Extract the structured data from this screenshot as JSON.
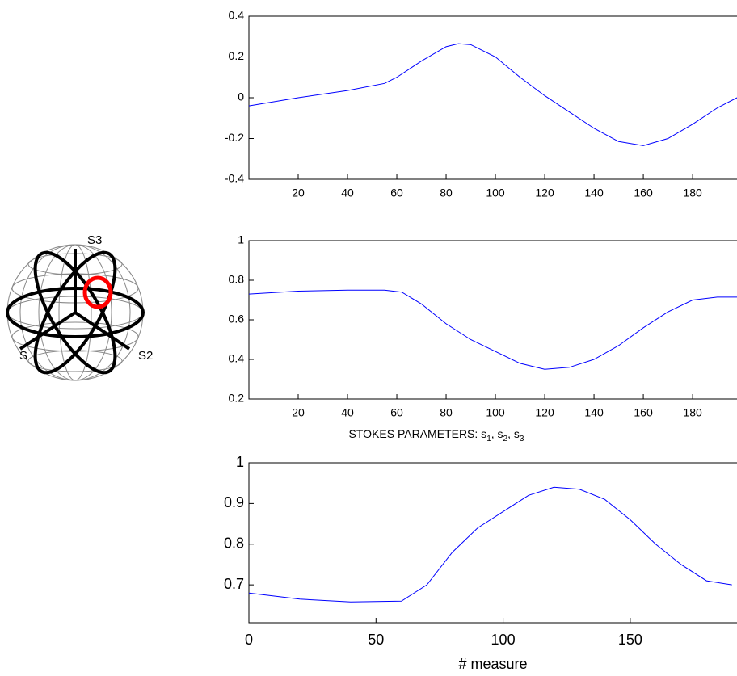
{
  "sphere": {
    "labels": [
      "S3",
      "S2",
      "S"
    ]
  },
  "chart_data": [
    {
      "type": "line",
      "xlim": [
        0,
        198
      ],
      "xticks": [
        20,
        40,
        60,
        80,
        100,
        120,
        140,
        160,
        180
      ],
      "ylim": [
        -0.4,
        0.4
      ],
      "yticks": [
        -0.4,
        -0.2,
        0,
        0.2,
        0.4
      ],
      "x": [
        0,
        20,
        40,
        55,
        60,
        70,
        80,
        85,
        90,
        100,
        110,
        120,
        130,
        140,
        150,
        160,
        170,
        180,
        190,
        198
      ],
      "series": [
        {
          "color": "#0000ff",
          "values": [
            -0.04,
            0,
            0.035,
            0.07,
            0.1,
            0.18,
            0.25,
            0.265,
            0.26,
            0.2,
            0.1,
            0.01,
            -0.07,
            -0.15,
            -0.215,
            -0.235,
            -0.2,
            -0.13,
            -0.05,
            0
          ]
        }
      ]
    },
    {
      "type": "line",
      "xlim": [
        0,
        198
      ],
      "xticks": [
        20,
        40,
        60,
        80,
        100,
        120,
        140,
        160,
        180
      ],
      "ylim": [
        0.2,
        1
      ],
      "yticks": [
        0.2,
        0.4,
        0.6,
        0.8,
        1
      ],
      "x": [
        0,
        20,
        40,
        55,
        62,
        70,
        80,
        90,
        100,
        110,
        120,
        130,
        140,
        150,
        160,
        170,
        180,
        190,
        198
      ],
      "series": [
        {
          "color": "#0000ff",
          "values": [
            0.73,
            0.745,
            0.75,
            0.75,
            0.74,
            0.68,
            0.58,
            0.5,
            0.44,
            0.38,
            0.35,
            0.36,
            0.4,
            0.47,
            0.56,
            0.64,
            0.7,
            0.715,
            0.715
          ]
        }
      ]
    },
    {
      "type": "line",
      "title": [
        "STOKES PARAMETERS: s",
        "1",
        ", s",
        "2",
        ", s",
        "3"
      ],
      "x_label": "# measure",
      "xlim": [
        0,
        192
      ],
      "xticks": [
        0,
        50,
        100,
        150
      ],
      "ylim": [
        0.607,
        1
      ],
      "yticks": [
        0.7,
        0.8,
        0.9,
        1
      ],
      "x": [
        0,
        20,
        40,
        60,
        70,
        80,
        90,
        100,
        110,
        120,
        130,
        140,
        150,
        160,
        170,
        180,
        190
      ],
      "series": [
        {
          "color": "#0000ff",
          "values": [
            0.68,
            0.665,
            0.658,
            0.66,
            0.7,
            0.78,
            0.84,
            0.88,
            0.92,
            0.94,
            0.935,
            0.91,
            0.86,
            0.8,
            0.75,
            0.71,
            0.7
          ]
        }
      ]
    }
  ]
}
